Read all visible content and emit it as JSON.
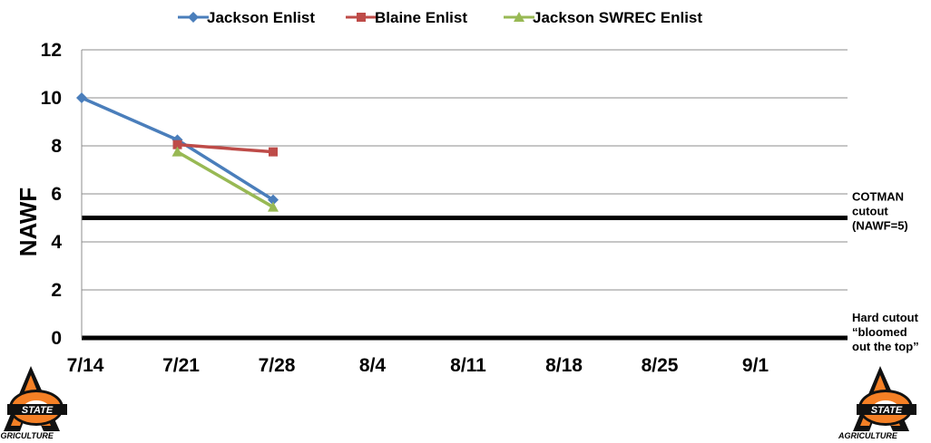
{
  "chart_data": {
    "type": "line",
    "ylabel": "NAWF",
    "xlabel": "",
    "title": "",
    "x_ticks": [
      "7/14",
      "7/21",
      "7/28",
      "8/4",
      "8/11",
      "8/18",
      "8/25",
      "9/1"
    ],
    "x_end_days": 56,
    "ylim": [
      0,
      12
    ],
    "y_ticks": [
      "0",
      "2",
      "4",
      "6",
      "8",
      "10",
      "12"
    ],
    "grid": "horizontal",
    "legend_position": "top",
    "series": [
      {
        "name": "Jackson Enlist",
        "color": "#4A7EBB",
        "marker": "diamond",
        "x": [
          "7/14",
          "7/21",
          "7/28"
        ],
        "y": [
          10.0,
          8.25,
          5.75
        ]
      },
      {
        "name": "Blaine Enlist",
        "color": "#BE4B48",
        "marker": "square",
        "x": [
          "7/21",
          "7/28"
        ],
        "y": [
          8.05,
          7.75
        ]
      },
      {
        "name": "Jackson SWREC Enlist",
        "color": "#98B954",
        "marker": "triangle",
        "x": [
          "7/21",
          "7/28"
        ],
        "y": [
          7.75,
          5.45
        ]
      }
    ],
    "reference_lines": [
      {
        "y": 5,
        "label_lines": [
          "COTMAN",
          "cutout",
          "(NAWF=5)"
        ]
      },
      {
        "y": 0,
        "label_lines": [
          "Hard cutout",
          "“bloomed",
          "out the top”"
        ]
      }
    ]
  },
  "logos": {
    "left": {
      "icon": "osu-agriculture-logo",
      "text": "AGRICULTURE",
      "brand_color": "#F58025"
    },
    "right": {
      "icon": "osu-agriculture-logo",
      "text": "AGRICULTURE",
      "brand_color": "#F58025"
    }
  }
}
